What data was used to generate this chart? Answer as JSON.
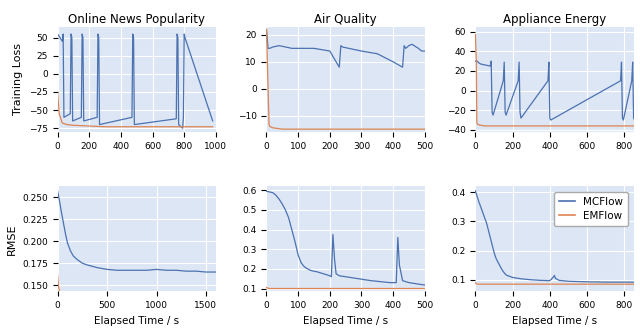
{
  "titles": [
    "Online News Popularity",
    "Air Quality",
    "Appliance Energy"
  ],
  "row_labels": [
    "Training Loss",
    "RMSE"
  ],
  "xlabel": "Elapsed Time / s",
  "legend_labels": [
    "MCFlow",
    "EMFlow"
  ],
  "mc_color": "#4c72b0",
  "em_color": "#dd8452",
  "bg_color": "#dce6f5",
  "panels": {
    "loss": {
      "onp": {
        "mc_x": [
          0,
          30,
          35,
          40,
          80,
          85,
          90,
          95,
          150,
          155,
          160,
          165,
          250,
          255,
          260,
          265,
          470,
          475,
          480,
          485,
          750,
          755,
          760,
          765,
          790,
          795,
          800,
          805,
          980
        ],
        "mc_y": [
          55,
          45,
          55,
          -60,
          -55,
          55,
          50,
          -65,
          -60,
          55,
          50,
          -65,
          -60,
          55,
          50,
          -70,
          -60,
          55,
          50,
          -70,
          -62,
          55,
          50,
          -70,
          -75,
          -60,
          55,
          50,
          -65
        ],
        "em_x": [
          0,
          10,
          30,
          60,
          100,
          200,
          300,
          500,
          700,
          900,
          980
        ],
        "em_y": [
          -25,
          -55,
          -68,
          -70,
          -71,
          -72,
          -73,
          -73,
          -73,
          -73,
          -73
        ],
        "xlim": [
          0,
          1000
        ],
        "ylim": [
          -80,
          65
        ],
        "yticks": [
          -75,
          -50,
          -25,
          0,
          25,
          50
        ]
      },
      "aq": {
        "mc_x": [
          0,
          5,
          10,
          20,
          40,
          60,
          80,
          100,
          120,
          150,
          200,
          230,
          235,
          240,
          260,
          300,
          350,
          400,
          430,
          435,
          440,
          450,
          460,
          480,
          490,
          500
        ],
        "mc_y": [
          22,
          15,
          15,
          15.5,
          16,
          15.5,
          15,
          15,
          15,
          15,
          14,
          8,
          16,
          15.5,
          15,
          14,
          13,
          10,
          8,
          16,
          15,
          16,
          16.5,
          15,
          14,
          14
        ],
        "em_x": [
          0,
          5,
          8,
          10,
          20,
          50,
          100,
          200,
          300,
          400,
          500
        ],
        "em_y": [
          22,
          0,
          -13,
          -14,
          -14.5,
          -15,
          -15,
          -15,
          -15,
          -15,
          -15
        ],
        "xlim": [
          0,
          500
        ],
        "ylim": [
          -16,
          23
        ],
        "yticks": [
          -10,
          0,
          10,
          20
        ]
      },
      "ae": {
        "mc_x": [
          0,
          10,
          20,
          30,
          80,
          85,
          90,
          95,
          150,
          155,
          160,
          165,
          230,
          235,
          240,
          245,
          390,
          395,
          400,
          405,
          780,
          785,
          790,
          795,
          840,
          845,
          850,
          855,
          900
        ],
        "mc_y": [
          30,
          30,
          28,
          27,
          25,
          30,
          -22,
          -25,
          10,
          29,
          -22,
          -25,
          10,
          29,
          -22,
          -28,
          10,
          29,
          -28,
          -30,
          10,
          29,
          -28,
          -30,
          10,
          29,
          -28,
          -30,
          -30
        ],
        "em_x": [
          0,
          5,
          8,
          10,
          20,
          50,
          100,
          200,
          300,
          400,
          500,
          700,
          850
        ],
        "em_y": [
          57,
          30,
          -32,
          -34,
          -35,
          -36,
          -36,
          -36,
          -36,
          -36,
          -36,
          -36,
          -36
        ],
        "xlim": [
          0,
          850
        ],
        "ylim": [
          -42,
          65
        ],
        "yticks": [
          -40,
          -20,
          0,
          20,
          40,
          60
        ]
      }
    },
    "rmse": {
      "onp": {
        "mc_x": [
          0,
          20,
          40,
          60,
          80,
          100,
          130,
          160,
          200,
          250,
          300,
          400,
          500,
          600,
          700,
          800,
          900,
          1000,
          1100,
          1200,
          1300,
          1400,
          1500,
          1600
        ],
        "mc_y": [
          0.257,
          0.245,
          0.232,
          0.22,
          0.208,
          0.198,
          0.189,
          0.183,
          0.179,
          0.175,
          0.173,
          0.17,
          0.168,
          0.167,
          0.167,
          0.167,
          0.167,
          0.168,
          0.167,
          0.167,
          0.166,
          0.166,
          0.165,
          0.165
        ],
        "em_x": [
          0,
          10,
          20,
          40,
          80,
          100,
          200,
          400,
          600,
          800,
          1000,
          1400,
          1600
        ],
        "em_y": [
          0.162,
          0.148,
          0.143,
          0.141,
          0.14,
          0.14,
          0.14,
          0.14,
          0.14,
          0.14,
          0.14,
          0.14,
          0.14
        ],
        "xlim": [
          0,
          1600
        ],
        "ylim": [
          0.143,
          0.262
        ],
        "yticks": [
          0.15,
          0.175,
          0.2,
          0.225,
          0.25
        ]
      },
      "aq": {
        "mc_x": [
          0,
          10,
          20,
          30,
          40,
          50,
          60,
          70,
          80,
          90,
          100,
          110,
          120,
          130,
          140,
          150,
          160,
          170,
          180,
          190,
          200,
          205,
          210,
          215,
          220,
          230,
          250,
          270,
          290,
          310,
          330,
          360,
          390,
          410,
          415,
          420,
          430,
          450,
          470,
          490,
          500
        ],
        "mc_y": [
          0.595,
          0.592,
          0.588,
          0.575,
          0.555,
          0.53,
          0.5,
          0.46,
          0.4,
          0.34,
          0.27,
          0.23,
          0.21,
          0.2,
          0.192,
          0.188,
          0.185,
          0.18,
          0.175,
          0.17,
          0.165,
          0.16,
          0.375,
          0.25,
          0.175,
          0.165,
          0.16,
          0.155,
          0.15,
          0.145,
          0.14,
          0.135,
          0.13,
          0.13,
          0.36,
          0.22,
          0.14,
          0.13,
          0.125,
          0.12,
          0.118
        ],
        "em_x": [
          0,
          5,
          10,
          20,
          50,
          100,
          200,
          300,
          400,
          500
        ],
        "em_y": [
          0.105,
          0.101,
          0.1,
          0.1,
          0.1,
          0.1,
          0.1,
          0.1,
          0.1,
          0.1
        ],
        "xlim": [
          0,
          500
        ],
        "ylim": [
          0.085,
          0.62
        ],
        "yticks": [
          0.1,
          0.2,
          0.3,
          0.4,
          0.5,
          0.6
        ]
      },
      "ae": {
        "mc_x": [
          0,
          10,
          20,
          30,
          40,
          50,
          60,
          70,
          80,
          90,
          100,
          110,
          120,
          130,
          140,
          150,
          160,
          170,
          200,
          250,
          300,
          350,
          400,
          420,
          425,
          430,
          450,
          500,
          600,
          700,
          800,
          850
        ],
        "mc_y": [
          0.405,
          0.385,
          0.365,
          0.348,
          0.33,
          0.312,
          0.295,
          0.27,
          0.245,
          0.22,
          0.195,
          0.175,
          0.162,
          0.15,
          0.138,
          0.128,
          0.12,
          0.115,
          0.108,
          0.103,
          0.1,
          0.098,
          0.097,
          0.11,
          0.115,
          0.105,
          0.098,
          0.095,
          0.093,
          0.092,
          0.092,
          0.092
        ],
        "em_x": [
          0,
          5,
          10,
          20,
          50,
          100,
          200,
          300,
          400,
          500,
          700,
          850
        ],
        "em_y": [
          0.09,
          0.087,
          0.085,
          0.085,
          0.085,
          0.085,
          0.085,
          0.085,
          0.085,
          0.085,
          0.085,
          0.085
        ],
        "xlim": [
          0,
          850
        ],
        "ylim": [
          0.06,
          0.42
        ],
        "yticks": [
          0.1,
          0.2,
          0.3,
          0.4
        ]
      }
    }
  }
}
